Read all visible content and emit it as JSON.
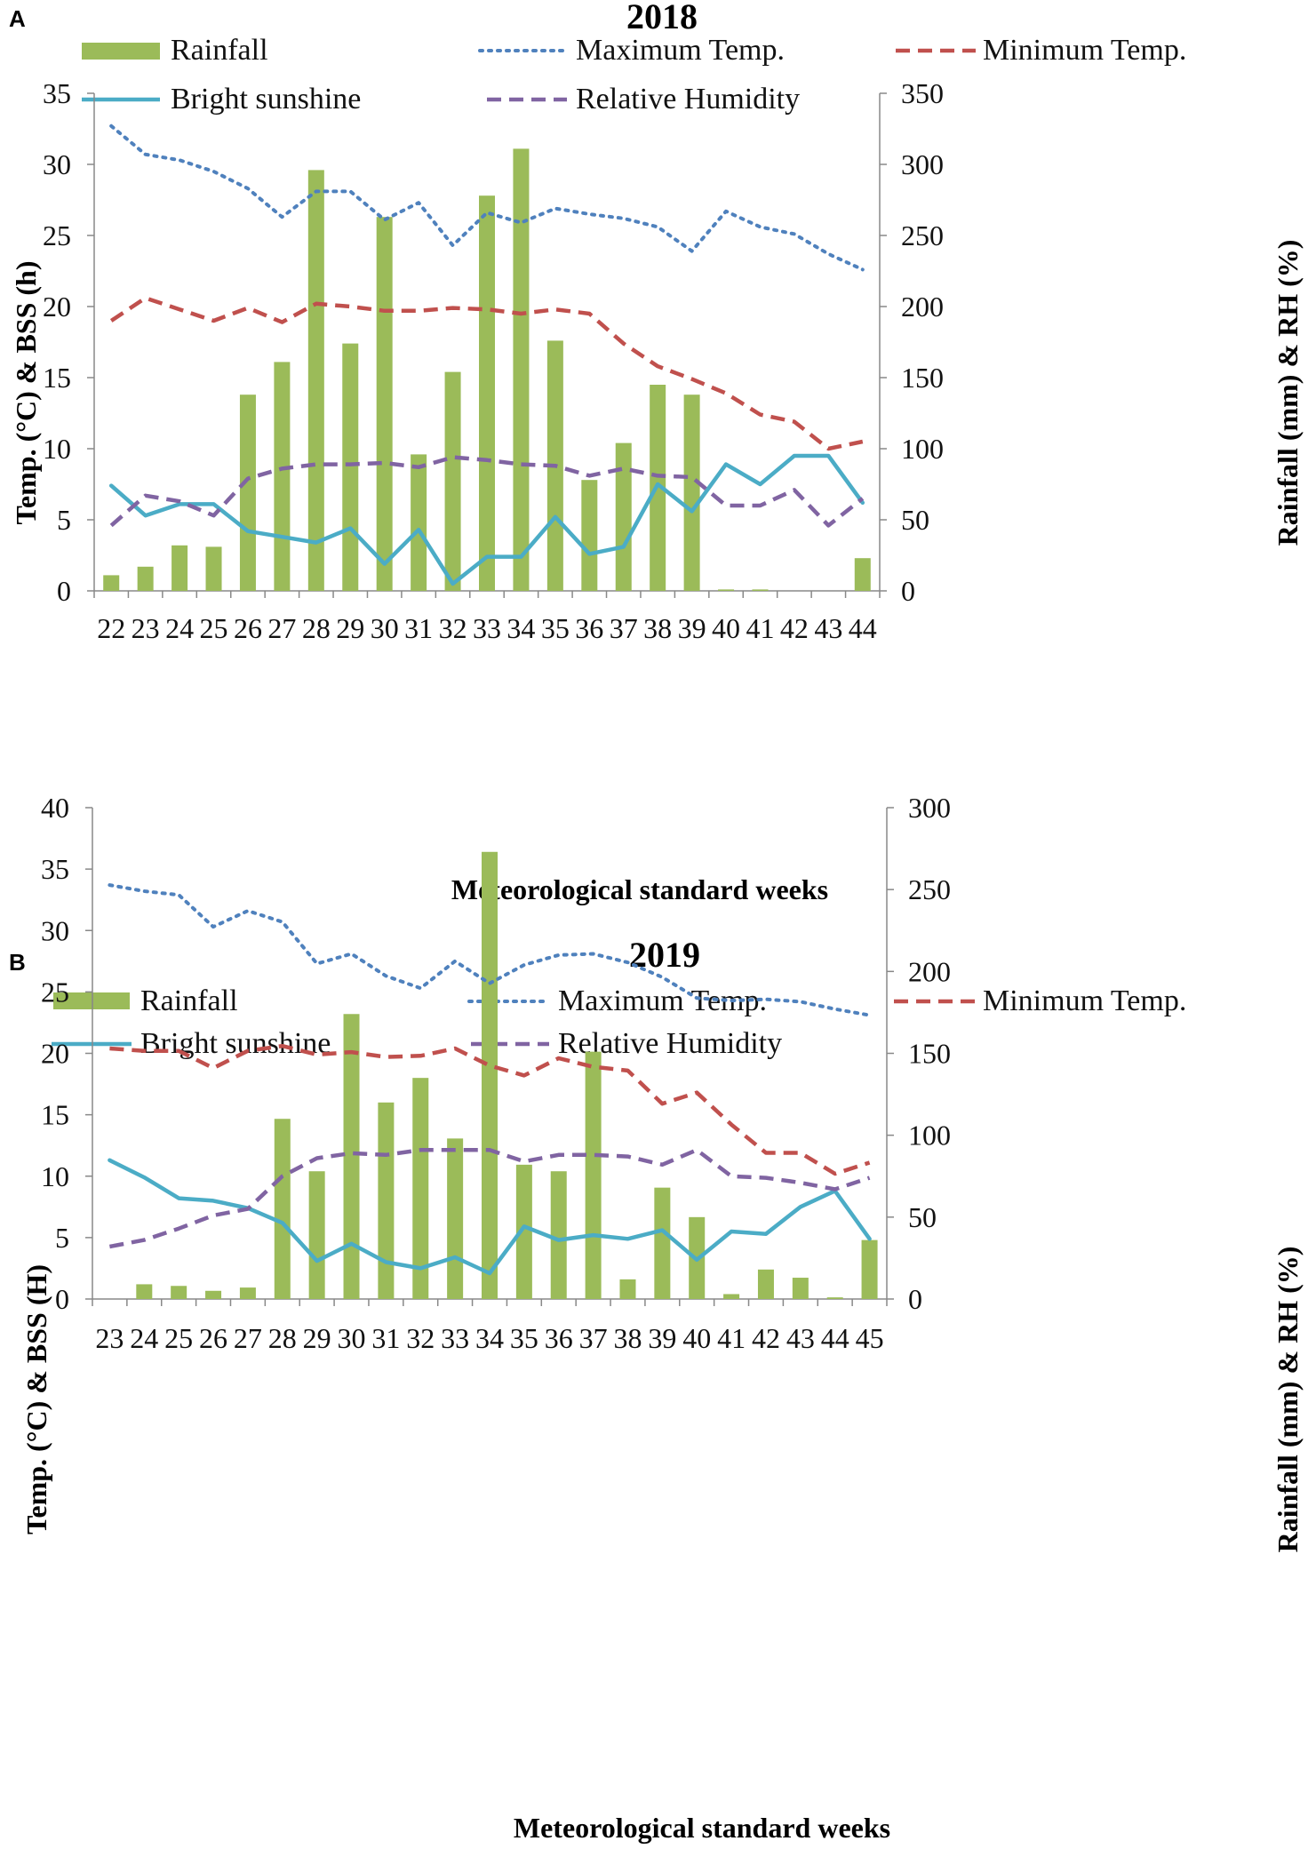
{
  "colors": {
    "rainfall": "#9BBB59",
    "max_temp": "#4F81BD",
    "min_temp": "#C0504D",
    "sunshine": "#4BACC6",
    "humidity": "#8064A2"
  },
  "legend": {
    "rainfall": "Rainfall",
    "max_temp": "Maximum Temp.",
    "min_temp": "Minimum Temp.",
    "sunshine": "Bright sunshine",
    "humidity": "Relative Humidity"
  },
  "chart_data": [
    {
      "panel": "A",
      "type": "bar",
      "title": "2018",
      "xlabel": "Meteorological standard weeks",
      "ylabel_left": "Temp. (°C) & BSS (h)",
      "ylabel_right": "Rainfall (mm) & RH (%)",
      "ylim_left": [
        0,
        35
      ],
      "ylim_right": [
        0,
        350
      ],
      "left_ticks": [
        0,
        5,
        10,
        15,
        20,
        25,
        30,
        35
      ],
      "right_ticks": [
        0,
        50,
        100,
        150,
        200,
        250,
        300,
        350
      ],
      "categories": [
        "22",
        "23",
        "24",
        "25",
        "26",
        "27",
        "28",
        "29",
        "30",
        "31",
        "32",
        "33",
        "34",
        "35",
        "36",
        "37",
        "38",
        "39",
        "40",
        "41",
        "42",
        "43",
        "44"
      ],
      "series": [
        {
          "name": "Rainfall",
          "axis": "right",
          "kind": "bar",
          "values": [
            11,
            17,
            32,
            31,
            138,
            161,
            296,
            174,
            263,
            96,
            154,
            278,
            311,
            176,
            78,
            104,
            145,
            138,
            1,
            1,
            0,
            0,
            23
          ]
        },
        {
          "name": "Maximum Temp.",
          "axis": "left",
          "kind": "dotted",
          "values": [
            32.7,
            30.7,
            30.3,
            29.5,
            28.3,
            26.3,
            28.1,
            28.1,
            26.1,
            27.3,
            24.3,
            26.6,
            25.9,
            26.9,
            26.5,
            26.2,
            25.6,
            23.9,
            26.7,
            25.6,
            25.1,
            23.7,
            22.6
          ]
        },
        {
          "name": "Minimum Temp.",
          "axis": "left",
          "kind": "dashed",
          "values": [
            19.0,
            20.6,
            19.8,
            19.0,
            19.9,
            18.9,
            20.2,
            20.0,
            19.7,
            19.7,
            19.9,
            19.8,
            19.5,
            19.8,
            19.5,
            17.4,
            15.8,
            14.9,
            13.9,
            12.4,
            11.9,
            10.0,
            10.5
          ]
        },
        {
          "name": "Bright sunshine",
          "axis": "left",
          "kind": "solid",
          "values": [
            7.4,
            5.3,
            6.1,
            6.1,
            4.2,
            3.8,
            3.4,
            4.4,
            1.9,
            4.3,
            0.5,
            2.4,
            2.4,
            5.2,
            2.6,
            3.1,
            7.5,
            5.6,
            8.9,
            7.5,
            9.5,
            9.5,
            6.2
          ]
        },
        {
          "name": "Relative Humidity",
          "axis": "right",
          "kind": "dashed",
          "values": [
            46,
            67,
            63,
            53,
            79,
            86,
            89,
            89,
            90,
            87,
            94,
            92,
            89,
            88,
            81,
            86,
            81,
            80,
            60,
            60,
            71,
            46,
            65
          ]
        }
      ]
    },
    {
      "panel": "B",
      "type": "bar",
      "title": "2019",
      "xlabel": "Meteorological standard weeks",
      "ylabel_left": "Temp. (°C) & BSS (H)",
      "ylabel_right": "Rainfall (mm) & RH (%)",
      "ylim_left": [
        0,
        40
      ],
      "ylim_right": [
        0,
        300
      ],
      "left_ticks": [
        0,
        5,
        10,
        15,
        20,
        25,
        30,
        35,
        40
      ],
      "right_ticks": [
        0,
        50,
        100,
        150,
        200,
        250,
        300
      ],
      "categories": [
        "23",
        "24",
        "25",
        "26",
        "27",
        "28",
        "29",
        "30",
        "31",
        "32",
        "33",
        "34",
        "35",
        "36",
        "37",
        "38",
        "39",
        "40",
        "41",
        "42",
        "43",
        "44",
        "45"
      ],
      "series": [
        {
          "name": "Rainfall",
          "axis": "right",
          "kind": "bar",
          "values": [
            0,
            9,
            8,
            5,
            7,
            110,
            78,
            174,
            120,
            135,
            98,
            273,
            82,
            78,
            151,
            12,
            68,
            50,
            3,
            18,
            13,
            1,
            36
          ]
        },
        {
          "name": "Maximum Temp.",
          "axis": "left",
          "kind": "dotted",
          "values": [
            33.7,
            33.2,
            32.9,
            30.3,
            31.6,
            30.7,
            27.3,
            28.1,
            26.3,
            25.3,
            27.5,
            25.7,
            27.2,
            28.0,
            28.1,
            27.4,
            26.2,
            24.5,
            24.3,
            24.4,
            24.2,
            23.6,
            23.1
          ]
        },
        {
          "name": "Minimum Temp.",
          "axis": "left",
          "kind": "dashed",
          "values": [
            20.4,
            20.2,
            20.2,
            18.8,
            20.2,
            20.6,
            19.9,
            20.1,
            19.7,
            19.8,
            20.4,
            19.0,
            18.2,
            19.6,
            18.9,
            18.6,
            15.9,
            16.8,
            14.2,
            11.9,
            11.9,
            10.2,
            11.1
          ]
        },
        {
          "name": "Bright sunshine",
          "axis": "left",
          "kind": "solid",
          "values": [
            11.3,
            9.9,
            8.2,
            8.0,
            7.4,
            6.2,
            3.1,
            4.5,
            3.0,
            2.5,
            3.4,
            2.1,
            5.9,
            4.8,
            5.2,
            4.9,
            5.6,
            3.2,
            5.5,
            5.3,
            7.5,
            8.8,
            4.9
          ]
        },
        {
          "name": "Relative Humidity",
          "axis": "right",
          "kind": "dashed",
          "values": [
            32,
            36,
            43,
            51,
            55,
            75,
            86,
            89,
            88,
            91,
            91,
            91,
            84,
            88,
            88,
            87,
            82,
            91,
            75,
            74,
            71,
            67,
            74
          ]
        }
      ]
    }
  ]
}
